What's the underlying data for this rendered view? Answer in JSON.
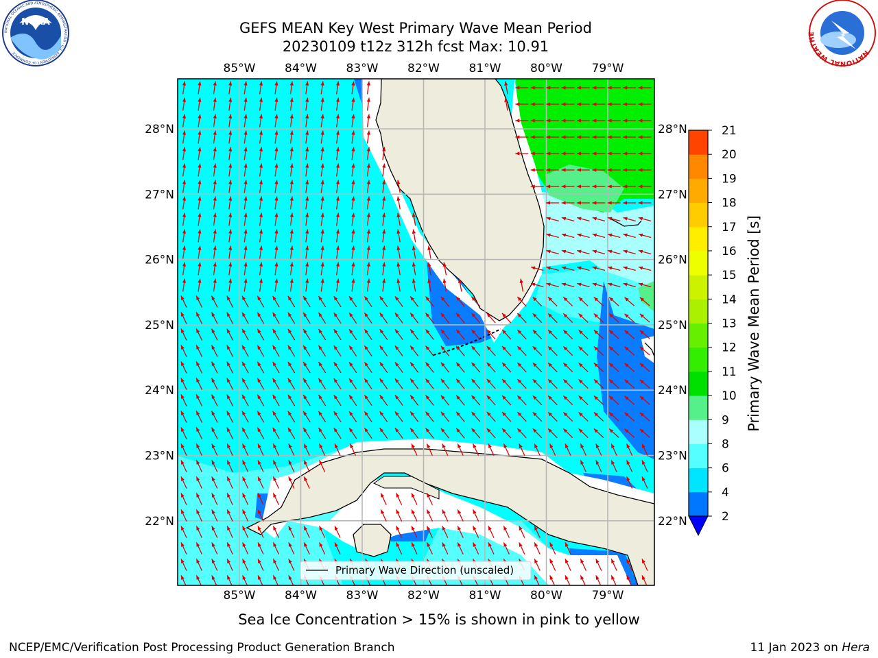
{
  "title_line1": "GEFS MEAN Key West Primary Wave Mean Period",
  "title_line2": "20230109 t12z 312h fcst   Max: 10.91",
  "top_lon_labels": [
    "85°W",
    "84°W",
    "83°W",
    "82°W",
    "81°W",
    "80°W",
    "79°W"
  ],
  "bottom_lon_labels": [
    "85°W",
    "84°W",
    "83°W",
    "82°W",
    "81°W",
    "80°W",
    "79°W"
  ],
  "left_lat_labels": [
    "28°N",
    "27°N",
    "26°N",
    "25°N",
    "24°N",
    "23°N",
    "22°N"
  ],
  "right_lat_labels": [
    "28°N",
    "27°N",
    "26°N",
    "25°N",
    "24°N",
    "23°N",
    "22°N"
  ],
  "legend_label": "Primary Wave Direction (unscaled)",
  "colorbar": {
    "label": "Primary Wave Mean Period [s]",
    "ticks": [
      "2",
      "4",
      "6",
      "8",
      "9",
      "10",
      "11",
      "12",
      "13",
      "14",
      "15",
      "16",
      "17",
      "18",
      "19",
      "20",
      "21"
    ],
    "colors": [
      "#0077ff",
      "#00e5ff",
      "#55ffff",
      "#aaffff",
      "#55f08a",
      "#00e000",
      "#33ee00",
      "#66f000",
      "#aaf000",
      "#ccf200",
      "#eeff00",
      "#ffee00",
      "#ffcc00",
      "#ffaa00",
      "#ff8800",
      "#ff4400",
      "#ff1a00"
    ],
    "extend_color": "#0000ff"
  },
  "caption": "Sea Ice Concentration > 15% is shown in pink to yellow",
  "footer_left": "NCEP/EMC/Verification Post Processing Product Generation Branch",
  "footer_right_prefix": "11 Jan 2023 on ",
  "footer_right_host": "Hera",
  "logos": {
    "left": {
      "text": "NOAA",
      "ring_text": "NATIONAL OCEANIC AND ATMOSPHERIC ADMINISTRATION · U.S. DEPARTMENT OF COMMERCE"
    },
    "right": {
      "ring_text": "NATIONAL WEATHER SERVICE"
    }
  },
  "colors": {
    "land": "#eeecdc",
    "sea_cyan": "#00ffff",
    "sea_light": "#55ffff",
    "sea_blue": "#0a7cff",
    "sea_green": "#00ee00",
    "sea_mint": "#55f08a",
    "sea_pale": "#aaffff",
    "arrow": "#e00000",
    "grid": "#b8b8b8"
  }
}
